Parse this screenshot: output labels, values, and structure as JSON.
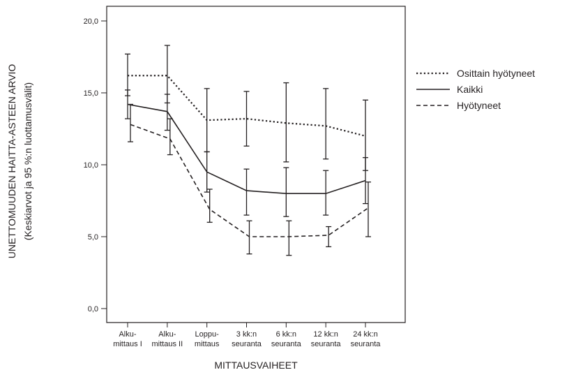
{
  "chart_data": {
    "type": "line",
    "title": "",
    "xlabel": "MITTAUSVAIHEET",
    "ylabel": "UNETTOMUUDEN HAITTA-ASTEEN ARVIO",
    "ylabel_sub": "(Keskiarvot ja 95 %:n luottamusvälit)",
    "ylim": [
      0,
      20
    ],
    "yticks": [
      "0,0",
      "5,0",
      "10,0",
      "15,0",
      "20,0"
    ],
    "ytick_values": [
      0,
      5,
      10,
      15,
      20
    ],
    "categories": [
      [
        "Alku-",
        "mittaus I"
      ],
      [
        "Alku-",
        "mittaus II"
      ],
      [
        "Loppu-",
        "mittaus"
      ],
      [
        "3 kk:n",
        "seuranta"
      ],
      [
        "6 kk:n",
        "seuranta"
      ],
      [
        "12 kk:n",
        "seuranta"
      ],
      [
        "24 kk:n",
        "seuranta"
      ]
    ],
    "grid": false,
    "legend_position": "right",
    "series": [
      {
        "name": "Osittain hyötyneet",
        "style": "dotted",
        "values": [
          16.2,
          16.2,
          13.1,
          13.2,
          12.9,
          12.7,
          12.0
        ],
        "ci_low": [
          14.8,
          14.3,
          10.9,
          11.3,
          10.2,
          10.4,
          9.6
        ],
        "ci_high": [
          17.7,
          18.3,
          15.3,
          15.1,
          15.7,
          15.3,
          14.5
        ]
      },
      {
        "name": "Kaikki",
        "style": "solid",
        "values": [
          14.2,
          13.7,
          9.5,
          8.2,
          8.0,
          8.0,
          8.9
        ],
        "ci_low": [
          13.2,
          12.4,
          8.1,
          6.5,
          6.4,
          6.5,
          7.3
        ],
        "ci_high": [
          15.2,
          14.9,
          10.9,
          9.7,
          9.8,
          9.6,
          10.5
        ]
      },
      {
        "name": "Hyötyneet",
        "style": "dashed",
        "values": [
          12.8,
          11.8,
          6.9,
          5.0,
          5.0,
          5.1,
          7.0
        ],
        "ci_low": [
          11.6,
          10.7,
          6.0,
          3.8,
          3.7,
          4.3,
          5.0
        ],
        "ci_high": [
          14.2,
          13.2,
          8.3,
          6.1,
          6.1,
          5.7,
          8.8
        ]
      }
    ],
    "colors": {
      "line": "#231f20",
      "frame": "#231f20"
    }
  }
}
